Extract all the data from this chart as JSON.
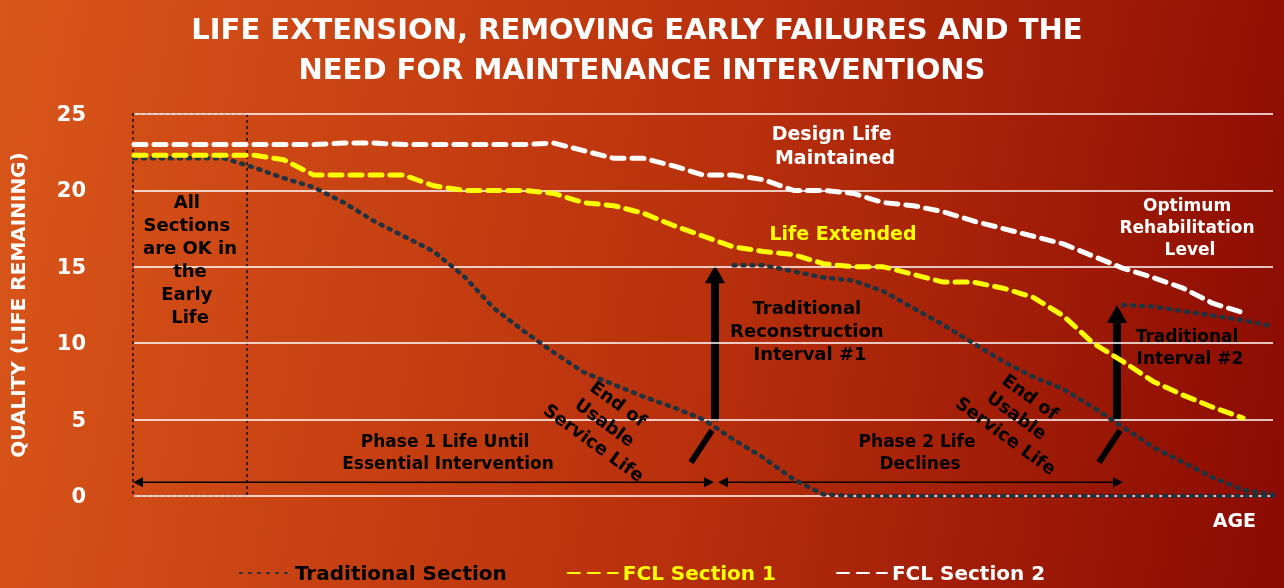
{
  "chart_data": {
    "type": "line",
    "title": "LIFE EXTENSION, REMOVING EARLY FAILURES AND THE NEED FOR MAINTENANCE INTERVENTIONS",
    "xlabel": "AGE",
    "ylabel": "QUALITY (LIFE REMAINING)",
    "categories": [
      null,
      null,
      null,
      null,
      null,
      null,
      null,
      null,
      null,
      null,
      null,
      null,
      null,
      null,
      null,
      null,
      null,
      null,
      null,
      null,
      null,
      null,
      null,
      null,
      null,
      null,
      null,
      null,
      null,
      null,
      null,
      null,
      null,
      null,
      null,
      null,
      null,
      null,
      null
    ],
    "series": [
      {
        "name": "Traditional Section",
        "color": "#1f3340",
        "line_style": "dotted",
        "values": [
          22.1,
          22.1,
          22.1,
          22.1,
          21.5,
          20.8,
          20.2,
          19.2,
          18,
          17,
          16,
          14.4,
          12.3,
          10.8,
          9.4,
          8.1,
          7.3,
          6.5,
          5.8,
          5.0,
          3.7,
          2.5,
          1.1,
          0.1,
          0,
          0,
          0,
          0,
          0,
          0,
          0,
          0,
          0,
          0,
          0,
          0,
          0,
          0,
          0
        ]
      },
      {
        "color": "#1f3340",
        "line_style": "dotted",
        "values": [
          null,
          null,
          null,
          null,
          null,
          null,
          null,
          null,
          null,
          null,
          null,
          null,
          null,
          null,
          null,
          null,
          null,
          null,
          null,
          null,
          15.1,
          15.1,
          14.7,
          14.3,
          14.1,
          13.4,
          12.3,
          11.2,
          10,
          8.8,
          7.8,
          7.0,
          5.8,
          4.5,
          3.2,
          2.2,
          1.2,
          0.4,
          0.1
        ]
      },
      {
        "color": "#1f3340",
        "line_style": "dotted",
        "values": [
          null,
          null,
          null,
          null,
          null,
          null,
          null,
          null,
          null,
          null,
          null,
          null,
          null,
          null,
          null,
          null,
          null,
          null,
          null,
          null,
          null,
          null,
          null,
          null,
          null,
          null,
          null,
          null,
          null,
          null,
          null,
          null,
          null,
          12.5,
          12.4,
          12.1,
          11.8,
          11.5,
          11.1
        ]
      },
      {
        "name": "FCL Section 1",
        "color": "#ffff00",
        "line_style": "dashed",
        "values": [
          22.3,
          22.3,
          22.3,
          22.3,
          22.3,
          22,
          21,
          21,
          21,
          21,
          20.3,
          20,
          20,
          20,
          19.8,
          19.2,
          19,
          18.5,
          17.7,
          17,
          16.3,
          16,
          15.8,
          15.2,
          15,
          15,
          14.5,
          14,
          14,
          13.6,
          13,
          11.8,
          10,
          8.8,
          7.5,
          6.6,
          5.8,
          5.1,
          null
        ]
      },
      {
        "name": "FCL Section 2",
        "color": "#ffffff",
        "line_style": "dashed",
        "values": [
          23,
          23,
          23,
          23,
          23,
          23,
          23,
          23.1,
          23.1,
          23,
          23,
          23,
          23,
          23,
          23.1,
          22.6,
          22.1,
          22.1,
          21.6,
          21,
          21,
          20.7,
          20,
          20,
          19.8,
          19.2,
          19,
          18.6,
          18,
          17.5,
          17,
          16.5,
          15.7,
          14.9,
          14.3,
          13.6,
          12.6,
          12.0,
          null
        ]
      }
    ],
    "ylim": [
      0,
      25
    ],
    "yticks": [
      0,
      5,
      10,
      15,
      20,
      25
    ],
    "grid": "y",
    "legend": "bottom",
    "marker": "none",
    "tick_labels": "y",
    "annotations": [
      "All Sections are OK in the Early Life",
      "Design Life Maintained",
      "Life Extended",
      "Optimum Rehabilitation Level",
      "Traditional Reconstruction Interval #1",
      "Traditional Interval #2",
      "End of Usable Service Life",
      "End of Usable Service Life",
      "Phase 1 Life Until Essential Intervention",
      "Phase 2 Life Declines"
    ]
  }
}
